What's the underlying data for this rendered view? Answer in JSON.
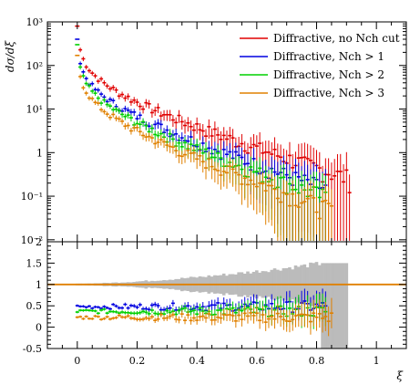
{
  "chart_data": [
    {
      "type": "scatter",
      "panel": "main",
      "title": "",
      "xlabel": "",
      "ylabel": "dσ/dξ",
      "yscale": "log",
      "xlim": [
        -0.1,
        1.1
      ],
      "ylim": [
        0.009,
        1000
      ],
      "y_tick_labels": [
        "10⁻²",
        "10⁻¹",
        "1",
        "10¹",
        "10²",
        "10³"
      ],
      "y_tick_values": [
        0.01,
        0.1,
        1,
        10,
        100,
        1000
      ],
      "legend_position": "top-right",
      "series": [
        {
          "name": "Diffractive, no N_ch cut",
          "legend_label": "Diffractive, no Nch cut",
          "color": "#e00000",
          "curve": {
            "first": [
              0.0,
              800
            ],
            "a": 12.0,
            "p": 0.65,
            "k": 4.3,
            "x_end": 0.91
          }
        },
        {
          "name": "Diffractive, N_ch > 1",
          "legend_label": "Diffractive, Nch > 1",
          "color": "#0000e0",
          "curve": {
            "first": [
              0.0,
              400
            ],
            "a": 6.0,
            "p": 0.65,
            "k": 4.6,
            "x_end": 0.83
          }
        },
        {
          "name": "Diffractive, N_ch > 2",
          "legend_label": "Diffractive, Nch > 2",
          "color": "#00d000",
          "curve": {
            "first": [
              0.0,
              300
            ],
            "a": 4.5,
            "p": 0.65,
            "k": 4.8,
            "x_end": 0.83
          }
        },
        {
          "name": "Diffractive, N_ch > 3",
          "legend_label": "Diffractive, Nch > 3",
          "color": "#e08000",
          "curve": {
            "first": [
              0.0,
              170
            ],
            "a": 3.0,
            "p": 0.65,
            "k": 5.0,
            "x_end": 0.85
          }
        }
      ]
    },
    {
      "type": "scatter",
      "panel": "ratio",
      "title": "",
      "xlabel": "ξ",
      "ylabel": "",
      "xlim": [
        -0.1,
        1.1
      ],
      "ylim": [
        -0.5,
        2
      ],
      "x_tick_labels": [
        "0",
        "0.2",
        "0.4",
        "0.6",
        "0.8",
        "1"
      ],
      "x_tick_values": [
        0,
        0.2,
        0.4,
        0.6,
        0.8,
        1
      ],
      "y_tick_labels": [
        "-0.5",
        "0",
        "0.5",
        "1",
        "1.5",
        "2"
      ],
      "y_tick_values": [
        -0.5,
        0,
        0.5,
        1,
        1.5,
        2
      ],
      "reference_line": {
        "y": 1,
        "color": "#e08000"
      },
      "uncertainty_band": {
        "color": "#bbbbbb",
        "x_start": 0.0,
        "x_end": 0.9
      },
      "series": [
        {
          "name": "Diffractive, N_ch > 1",
          "color": "#0000e0",
          "level": 0.48,
          "x_end": 0.83
        },
        {
          "name": "Diffractive, N_ch > 2",
          "color": "#00d000",
          "level": 0.37,
          "x_end": 0.83
        },
        {
          "name": "Diffractive, N_ch > 3",
          "color": "#e08000",
          "level": 0.23,
          "x_end": 0.85
        }
      ]
    }
  ]
}
